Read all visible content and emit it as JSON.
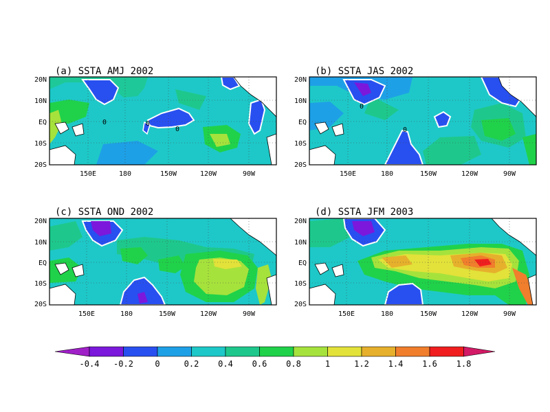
{
  "figure": {
    "panels": [
      {
        "title": "(a) SSTA AMJ 2002",
        "lat_labels": [
          "20N",
          "10N",
          "EQ",
          "10S",
          "20S"
        ],
        "lon_labels": [
          "150E",
          "180",
          "150W",
          "120W",
          "90W"
        ],
        "contour_labels": [
          "0",
          "0",
          "0"
        ]
      },
      {
        "title": "(b) SSTA JAS 2002",
        "lat_labels": [
          "20N",
          "10N",
          "EQ",
          "10S",
          "20S"
        ],
        "lon_labels": [
          "150E",
          "180",
          "150W",
          "120W",
          "90W"
        ],
        "contour_labels": [
          "0",
          "0"
        ]
      },
      {
        "title": "(c) SSTA OND 2002",
        "lat_labels": [
          "20N",
          "10N",
          "EQ",
          "10S",
          "20S"
        ],
        "lon_labels": [
          "150E",
          "180",
          "150W",
          "120W",
          "90W"
        ],
        "contour_labels": []
      },
      {
        "title": "(d) SSTA JFM 2003",
        "lat_labels": [
          "20N",
          "10N",
          "EQ",
          "10S",
          "20S"
        ],
        "lon_labels": [
          "150E",
          "180",
          "150W",
          "120W",
          "90W"
        ],
        "contour_labels": []
      }
    ],
    "colorbar": {
      "labels": [
        "-0.4",
        "-0.2",
        "0",
        "0.2",
        "0.4",
        "0.6",
        "0.8",
        "1",
        "1.2",
        "1.4",
        "1.6",
        "1.8"
      ],
      "colors": [
        "#a020c8",
        "#7b18db",
        "#2850f0",
        "#1ea0e6",
        "#1ec8c8",
        "#1ec88c",
        "#20d24a",
        "#a6e23c",
        "#e2e23a",
        "#e6b02c",
        "#f07e2c",
        "#f01e1e",
        "#d21a66"
      ]
    }
  }
}
